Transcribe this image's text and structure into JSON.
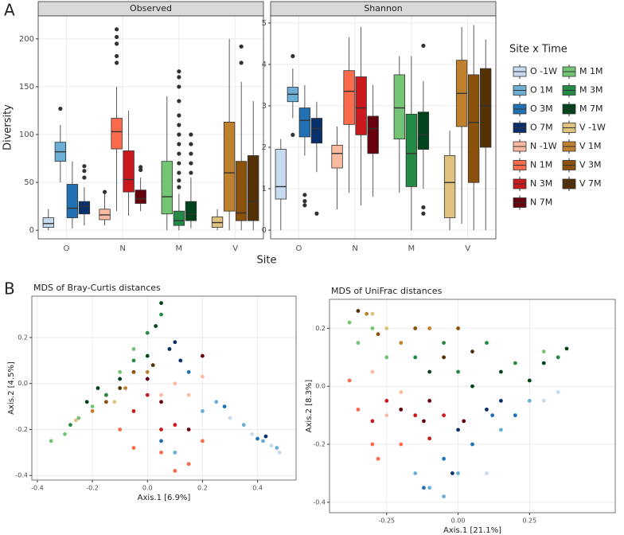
{
  "panel_labels": [
    "A",
    "B"
  ],
  "legend": {
    "title": "Site x Time",
    "items": [
      {
        "name": "O -1W",
        "color": "#c6dbef"
      },
      {
        "name": "O 1M",
        "color": "#6baed6"
      },
      {
        "name": "O 3M",
        "color": "#2171b5"
      },
      {
        "name": "O 7M",
        "color": "#08306b"
      },
      {
        "name": "N -1W",
        "color": "#fcbba1"
      },
      {
        "name": "N 1M",
        "color": "#fb6a4a"
      },
      {
        "name": "N 3M",
        "color": "#cb181d"
      },
      {
        "name": "N 7M",
        "color": "#67000d"
      },
      {
        "name": "M 1M",
        "color": "#74c476"
      },
      {
        "name": "M 3M",
        "color": "#238b45"
      },
      {
        "name": "M 7M",
        "color": "#00441b"
      },
      {
        "name": "V -1W",
        "color": "#dfc27d"
      },
      {
        "name": "V 1M",
        "color": "#bf812d"
      },
      {
        "name": "V 3M",
        "color": "#8c510a"
      },
      {
        "name": "V 7M",
        "color": "#543005"
      }
    ]
  },
  "chart_data": [
    {
      "type": "box",
      "title": "Observed",
      "xlabel": "Site",
      "ylabel": "Diversity",
      "categories": [
        "O",
        "N",
        "M",
        "V"
      ],
      "ylim": [
        -9,
        224
      ],
      "yticks": [
        0,
        50,
        100,
        150,
        200
      ],
      "grid": true,
      "boxes": [
        [
          {
            "stats": [
              0,
              3,
              7,
              13,
              22
            ],
            "outliers": []
          },
          {
            "stats": [
              50,
              72,
              82,
              92,
              110
            ],
            "outliers": [
              127
            ]
          },
          {
            "stats": [
              2,
              13,
              23,
              48,
              72
            ],
            "outliers": []
          },
          {
            "stats": [
              5,
              17,
              25,
              30,
              45
            ],
            "outliers": [
              55,
              62,
              67
            ]
          }
        ],
        [
          {
            "stats": [
              5,
              11,
              16,
              22,
              38
            ],
            "outliers": [
              40
            ]
          },
          {
            "stats": [
              20,
              85,
              103,
              117,
              150
            ],
            "outliers": [
              175,
              182,
              195,
              202,
              210
            ]
          },
          {
            "stats": [
              15,
              40,
              53,
              83,
              125
            ],
            "outliers": []
          },
          {
            "stats": [
              20,
              28,
              33,
              42,
              55
            ],
            "outliers": [
              63,
              66
            ]
          }
        ],
        [
          {
            "stats": [
              0,
              17,
              35,
              72,
              140
            ],
            "outliers": []
          },
          {
            "stats": [
              0,
              5,
              10,
              20,
              38
            ],
            "outliers": [
              45,
              52,
              60,
              70,
              80,
              90,
              100,
              110,
              120,
              135,
              150,
              160,
              166
            ]
          },
          {
            "stats": [
              2,
              10,
              17,
              30,
              55
            ],
            "outliers": [
              60,
              70,
              80,
              90,
              100
            ]
          }
        ],
        [
          {
            "stats": [
              0,
              3,
              8,
              14,
              22
            ],
            "outliers": []
          },
          {
            "stats": [
              0,
              20,
              60,
              113,
              200
            ],
            "outliers": []
          },
          {
            "stats": [
              0,
              10,
              18,
              72,
              155
            ],
            "outliers": [
              175,
              192
            ]
          },
          {
            "stats": [
              0,
              10,
              30,
              78,
              135
            ],
            "outliers": []
          }
        ]
      ]
    },
    {
      "type": "box",
      "title": "Shannon",
      "categories": [
        "O",
        "N",
        "M",
        "V"
      ],
      "ylim": [
        -0.21,
        5.17
      ],
      "yticks": [
        0,
        1,
        2,
        3,
        4,
        5
      ],
      "grid": true,
      "boxes": [
        [
          {
            "stats": [
              0,
              0.75,
              1.05,
              1.95,
              2.2
            ],
            "outliers": []
          },
          {
            "stats": [
              2.7,
              3.1,
              3.28,
              3.45,
              3.9
            ],
            "outliers": [
              4.2,
              2.3
            ]
          },
          {
            "stats": [
              1.8,
              2.25,
              2.65,
              2.95,
              3.5
            ],
            "outliers": [
              0.6,
              0.7,
              0.85
            ]
          },
          {
            "stats": [
              1.4,
              2.1,
              2.45,
              2.7,
              3.1
            ],
            "outliers": [
              0.4
            ]
          }
        ],
        [
          {
            "stats": [
              0.5,
              1.5,
              1.85,
              2.05,
              2.5
            ],
            "outliers": []
          },
          {
            "stats": [
              0.9,
              2.55,
              3.35,
              3.85,
              4.65
            ],
            "outliers": []
          },
          {
            "stats": [
              0.6,
              2.3,
              2.95,
              3.7,
              4.9
            ],
            "outliers": []
          },
          {
            "stats": [
              0.8,
              1.85,
              2.45,
              2.75,
              3.5
            ],
            "outliers": []
          }
        ],
        [
          {
            "stats": [
              0.9,
              2.2,
              2.95,
              3.75,
              4.2
            ],
            "outliers": []
          },
          {
            "stats": [
              0,
              1.05,
              1.85,
              2.8,
              4.2
            ],
            "outliers": []
          },
          {
            "stats": [
              1.0,
              1.95,
              2.3,
              2.85,
              3.6
            ],
            "outliers": [
              4.45,
              0.55,
              0.4
            ]
          }
        ],
        [
          {
            "stats": [
              0,
              0.3,
              1.15,
              1.8,
              2.4
            ],
            "outliers": []
          },
          {
            "stats": [
              0.15,
              2.5,
              3.3,
              4.1,
              4.9
            ],
            "outliers": []
          },
          {
            "stats": [
              0,
              1.15,
              2.6,
              3.75,
              4.95
            ],
            "outliers": []
          },
          {
            "stats": [
              0,
              2.0,
              3.0,
              3.9,
              4.6
            ],
            "outliers": []
          }
        ]
      ]
    },
    {
      "type": "scatter",
      "title": "MDS of Bray-Curtis distances",
      "xlabel": "Axis.1   [6.9%]",
      "ylabel": "Axis.2   [4.5%]",
      "xlim": [
        -0.42,
        0.54
      ],
      "ylim": [
        -0.42,
        0.38
      ],
      "xticks": [
        -0.4,
        -0.2,
        {
          "value": 0,
          "label": "0.0"
        },
        0.2,
        0.4
      ],
      "yticks": [
        -0.4,
        -0.2,
        {
          "value": 0,
          "label": "0.0"
        },
        0.2
      ],
      "grid": true,
      "groups": [
        {
          "x": [
            0.38,
            0.45,
            0.48,
            0.3
          ],
          "y": [
            -0.22,
            -0.27,
            -0.3,
            -0.15
          ]
        },
        {
          "x": [
            0.25,
            0.35,
            0.42,
            0.1,
            0.2,
            0.47
          ],
          "y": [
            -0.08,
            -0.18,
            -0.25,
            -0.3,
            -0.12,
            -0.28
          ]
        },
        {
          "x": [
            0.15,
            0.28,
            0.4,
            0.05
          ],
          "y": [
            0.05,
            -0.1,
            -0.24,
            -0.25
          ]
        },
        {
          "x": [
            0.08,
            0.12,
            0.43,
            0.1
          ],
          "y": [
            0.15,
            0.1,
            -0.23,
            0.18
          ]
        },
        {
          "x": [
            0.1,
            0.15,
            0.05,
            0.2
          ],
          "y": [
            0.0,
            -0.05,
            -0.05,
            0.03
          ]
        },
        {
          "x": [
            0.05,
            0.15,
            -0.05,
            0.2,
            0.1,
            -0.1
          ],
          "y": [
            -0.3,
            -0.35,
            -0.28,
            -0.25,
            -0.38,
            -0.2
          ]
        },
        {
          "x": [
            -0.05,
            0.0,
            0.1,
            -0.15,
            0.05
          ],
          "y": [
            -0.12,
            -0.05,
            -0.18,
            -0.05,
            -0.2
          ]
        },
        {
          "x": [
            0.0,
            0.05,
            0.15,
            0.2
          ],
          "y": [
            0.02,
            -0.08,
            -0.2,
            0.12
          ]
        },
        {
          "x": [
            -0.35,
            -0.3,
            -0.25,
            -0.2,
            -0.1,
            -0.05
          ],
          "y": [
            -0.25,
            -0.22,
            -0.15,
            -0.1,
            0.05,
            0.15
          ]
        },
        {
          "x": [
            -0.28,
            -0.15,
            -0.05,
            0.0,
            0.05
          ],
          "y": [
            -0.18,
            -0.05,
            0.1,
            0.22,
            0.3
          ]
        },
        {
          "x": [
            -0.22,
            -0.1,
            0.0,
            0.03,
            0.05,
            -0.18
          ],
          "y": [
            -0.08,
            0.02,
            0.12,
            0.25,
            0.35,
            -0.02
          ]
        },
        {
          "x": [
            -0.26,
            -0.12
          ],
          "y": [
            -0.16,
            -0.08
          ]
        },
        {
          "x": [
            -0.2,
            -0.08,
            0.0
          ],
          "y": [
            -0.12,
            -0.02,
            0.05
          ]
        },
        {
          "x": [
            -0.15,
            -0.05
          ],
          "y": [
            -0.08,
            0.05
          ]
        },
        {
          "x": [
            -0.1,
            0.02
          ],
          "y": [
            -0.02,
            0.08
          ]
        }
      ]
    },
    {
      "type": "scatter",
      "title": "MDS of UniFrac distances",
      "xlabel": "Axis.1   [21.1%]",
      "ylabel": "Axis.2   [8.3%]",
      "xlim": [
        -0.45,
        0.55
      ],
      "ylim": [
        -0.436,
        0.3
      ],
      "xticks": [
        -0.25,
        {
          "value": 0,
          "label": "0.00"
        },
        0.25
      ],
      "yticks": [
        -0.4,
        -0.2,
        {
          "value": 0,
          "label": "0.0"
        },
        0.2
      ],
      "grid": true,
      "groups": [
        {
          "x": [
            0.2,
            0.3,
            0.1,
            0.35
          ],
          "y": [
            -0.1,
            -0.05,
            -0.3,
            -0.02
          ]
        },
        {
          "x": [
            -0.1,
            -0.05,
            0.0,
            -0.15,
            0.15,
            0.25
          ],
          "y": [
            -0.35,
            -0.38,
            -0.3,
            -0.3,
            -0.15,
            -0.05
          ]
        },
        {
          "x": [
            -0.05,
            0.05,
            0.12,
            -0.12,
            0.2
          ],
          "y": [
            -0.25,
            -0.2,
            -0.1,
            -0.35,
            -0.1
          ]
        },
        {
          "x": [
            0.0,
            0.1,
            0.15,
            -0.02
          ],
          "y": [
            -0.15,
            -0.08,
            -0.05,
            -0.3
          ]
        },
        {
          "x": [
            -0.3,
            -0.2,
            -0.25
          ],
          "y": [
            0.05,
            -0.02,
            -0.1
          ]
        },
        {
          "x": [
            -0.35,
            -0.3,
            -0.28,
            -0.2,
            -0.38
          ],
          "y": [
            -0.08,
            -0.2,
            -0.25,
            -0.2,
            0.02
          ]
        },
        {
          "x": [
            -0.25,
            -0.15,
            -0.1,
            -0.3,
            -0.05
          ],
          "y": [
            -0.05,
            -0.1,
            -0.18,
            -0.12,
            -0.1
          ]
        },
        {
          "x": [
            -0.2,
            -0.12,
            -0.1,
            0.02
          ],
          "y": [
            -0.08,
            -0.12,
            -0.05,
            -0.12
          ]
        },
        {
          "x": [
            -0.35,
            -0.3,
            -0.25,
            -0.38,
            0.3
          ],
          "y": [
            0.15,
            0.2,
            0.1,
            0.22,
            0.12
          ]
        },
        {
          "x": [
            -0.15,
            0.0,
            0.1,
            0.2,
            0.35,
            -0.05
          ],
          "y": [
            0.1,
            0.05,
            0.15,
            0.08,
            0.1,
            0.15
          ]
        },
        {
          "x": [
            0.05,
            0.15,
            0.25,
            0.38,
            -0.1,
            0.3
          ],
          "y": [
            0.0,
            0.05,
            0.02,
            0.13,
            0.05,
            0.08
          ]
        },
        {
          "x": [
            -0.3,
            -0.25
          ],
          "y": [
            0.25,
            0.2
          ]
        },
        {
          "x": [
            -0.2,
            -0.1,
            -0.32
          ],
          "y": [
            0.15,
            0.2,
            0.25
          ]
        },
        {
          "x": [
            -0.15,
            0.0,
            -0.28
          ],
          "y": [
            0.2,
            0.2,
            0.18
          ]
        },
        {
          "x": [
            -0.05,
            0.05,
            -0.35
          ],
          "y": [
            0.1,
            0.12,
            0.26
          ]
        }
      ]
    }
  ]
}
